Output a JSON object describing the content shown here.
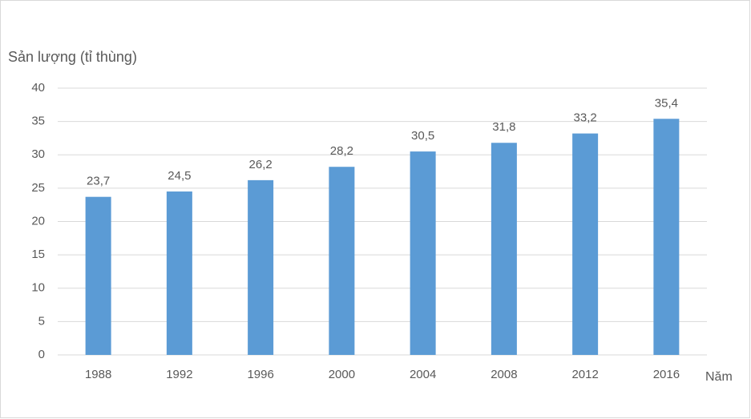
{
  "chart_data": {
    "type": "bar",
    "y_axis_label": "Sản lượng (tỉ thùng)",
    "x_axis_label": "Năm",
    "categories": [
      "1988",
      "1992",
      "1996",
      "2000",
      "2004",
      "2008",
      "2012",
      "2016"
    ],
    "values": [
      23.7,
      24.5,
      26.2,
      28.2,
      30.5,
      31.8,
      33.2,
      35.4
    ],
    "value_labels": [
      "23,7",
      "24,5",
      "26,2",
      "28,2",
      "30,5",
      "31,8",
      "33,2",
      "35,4"
    ],
    "color": "#5b9bd5",
    "ylim": [
      0,
      40
    ],
    "yticks": [
      0,
      5,
      10,
      15,
      20,
      25,
      30,
      35,
      40
    ],
    "grid": true
  }
}
